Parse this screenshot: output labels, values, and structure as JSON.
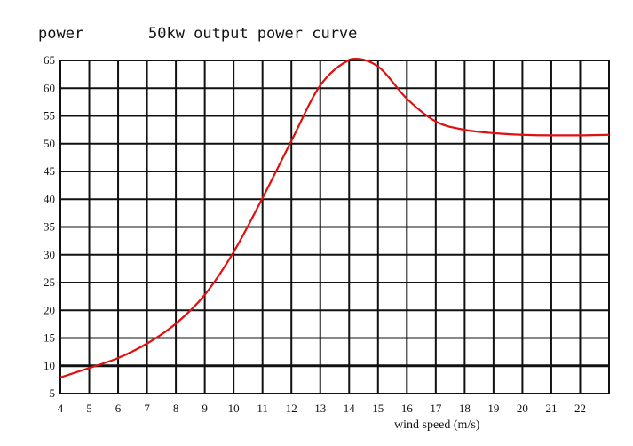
{
  "header": {
    "ylabel": "power",
    "title": "50kw output power curve"
  },
  "chart_data": {
    "type": "line",
    "title": "50kw output power curve",
    "ylabel": "power",
    "xlabel": "wind speed (m/s)",
    "xlim": [
      4,
      23
    ],
    "ylim": [
      5,
      65
    ],
    "grid": true,
    "x_ticks": [
      "4",
      "5",
      "6",
      "7",
      "8",
      "9",
      "10",
      "11",
      "12",
      "13",
      "14",
      "15",
      "16",
      "17",
      "18",
      "19",
      "20",
      "21",
      "22"
    ],
    "y_ticks": [
      "65",
      "60",
      "55",
      "50",
      "45",
      "40",
      "35",
      "30",
      "25",
      "20",
      "15",
      "10",
      "5"
    ],
    "series": [
      {
        "color": "#e01010",
        "x": [
          4,
          5,
          6,
          7,
          8,
          9,
          10,
          11,
          12,
          13,
          14,
          14.2,
          15,
          16,
          17,
          18,
          19,
          20,
          21,
          22,
          23
        ],
        "y": [
          7.9,
          9.6,
          11.4,
          14,
          17.6,
          22.8,
          30.5,
          40.2,
          50.5,
          60.5,
          65.1,
          65.3,
          63.9,
          58.1,
          54,
          52.5,
          51.9,
          51.6,
          51.5,
          51.5,
          51.6
        ]
      }
    ]
  }
}
